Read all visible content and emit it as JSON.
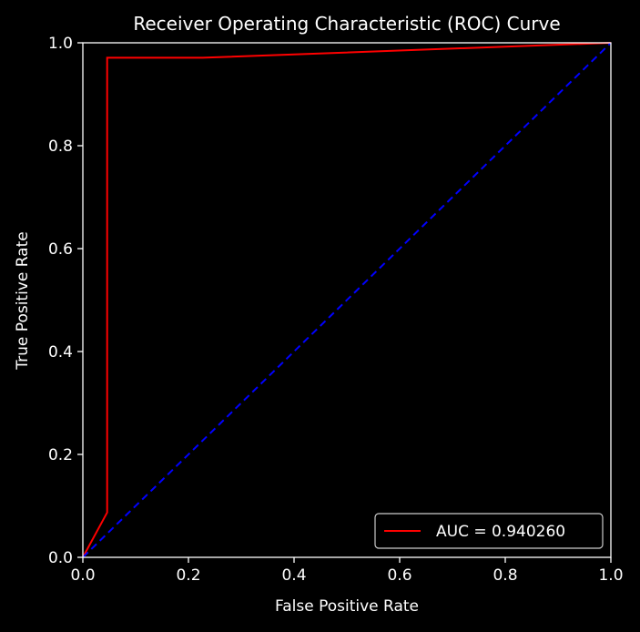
{
  "chart_data": {
    "type": "line",
    "title": "Receiver Operating Characteristic (ROC) Curve",
    "xlabel": "False Positive Rate",
    "ylabel": "True Positive Rate",
    "xlim": [
      0.0,
      1.0
    ],
    "ylim": [
      0.0,
      1.0
    ],
    "xticks": [
      "0.0",
      "0.2",
      "0.4",
      "0.6",
      "0.8",
      "1.0"
    ],
    "yticks": [
      "0.0",
      "0.2",
      "0.4",
      "0.6",
      "0.8",
      "1.0"
    ],
    "grid": false,
    "legend_position": "bottom-right",
    "series": [
      {
        "name": "AUC = 0.940260",
        "style": "solid",
        "color": "#ff0000",
        "x": [
          0.0,
          0.046,
          0.046,
          0.227,
          1.0
        ],
        "y": [
          0.0,
          0.087,
          0.971,
          0.971,
          1.0
        ]
      },
      {
        "style": "dashed",
        "color": "#0000ff",
        "x": [
          0.0,
          1.0
        ],
        "y": [
          0.0,
          1.0
        ]
      }
    ]
  },
  "colors": {
    "background": "#000000",
    "axes": "#ffffff",
    "roc_line": "#ff0000",
    "chance_line": "#0000ff"
  }
}
